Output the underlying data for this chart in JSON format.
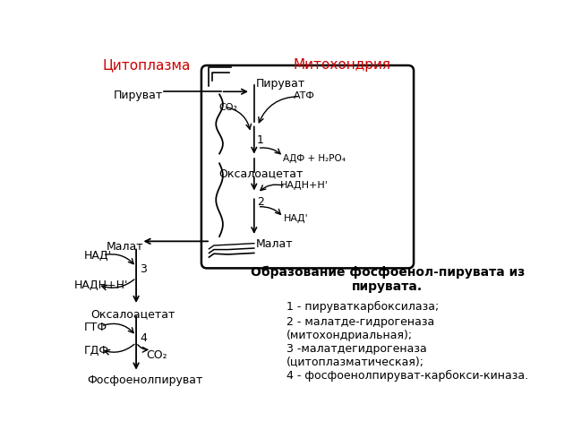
{
  "cytoplasm_label": "Цитоплазма",
  "mitochondria_label": "Митохондрия",
  "bg_color": "#ffffff",
  "text_color": "#000000",
  "red_color": "#cc0000",
  "arrow_color": "#000000",
  "title_text": "Образование фосфоенол-пирувата из\nпирувата.",
  "legend_items": [
    "1 - пируваткарбоксилаза;",
    "2 - малатде-гидрогеназа\n(митохондриальная);",
    "3 -малатдегидрогеназа\n(цитоплазматическая);",
    "4 - фосфоенолпируват-карбокси-киназа."
  ]
}
